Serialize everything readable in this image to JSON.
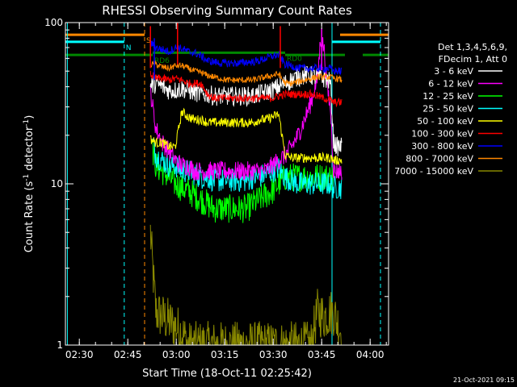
{
  "chart_data": {
    "type": "line",
    "title": "RHESSI Observing Summary Count Rates",
    "xlabel": "Start Time (18-Oct-11 02:25:42)",
    "ylabel_main": "Count Rate (s",
    "ylabel_sup1": "-1",
    "ylabel_mid": " detector",
    "ylabel_sup2": "-1",
    "ylabel_end": ")",
    "timestamp": "21-Oct-2021 09:15",
    "y_scale": "log",
    "ylim": [
      1,
      100
    ],
    "xlim_minutes": [
      0,
      100
    ],
    "x_ticks": [
      {
        "label": "02:30",
        "min": 4.3
      },
      {
        "label": "02:45",
        "min": 19.3
      },
      {
        "label": "03:00",
        "min": 34.3
      },
      {
        "label": "03:15",
        "min": 49.3
      },
      {
        "label": "03:30",
        "min": 64.3
      },
      {
        "label": "03:45",
        "min": 79.3
      },
      {
        "label": "04:00",
        "min": 94.3
      }
    ],
    "y_ticks": [
      {
        "label": "100",
        "value": 100
      },
      {
        "label": "10",
        "value": 10
      },
      {
        "label": "1",
        "value": 1
      }
    ],
    "legend": {
      "header1": "Det 1,3,4,5,6,9,",
      "header2": "FDecim 1, Att 0",
      "entries": [
        {
          "label": "3 - 6 keV",
          "color": "#ffffff"
        },
        {
          "label": "6 - 12 keV",
          "color": "#ff00ff"
        },
        {
          "label": "12 - 25 keV",
          "color": "#00ff00"
        },
        {
          "label": "25 - 50 keV",
          "color": "#00ffff"
        },
        {
          "label": "50 - 100 keV",
          "color": "#ffff00"
        },
        {
          "label": "100 - 300 keV",
          "color": "#ff0000"
        },
        {
          "label": "300 - 800 keV",
          "color": "#0000ff"
        },
        {
          "label": "800 - 7000 keV",
          "color": "#ff8800"
        },
        {
          "label": "7000 - 15000 keV",
          "color": "#888800"
        }
      ]
    },
    "flags": [
      {
        "label": "S",
        "color": "#ff8800",
        "segments": [
          [
            0,
            24.5
          ],
          [
            85,
            100
          ]
        ],
        "level": 84
      },
      {
        "label": "N",
        "color": "#00ffff",
        "segments": [
          [
            0,
            18.2
          ],
          [
            82.5,
            97.5
          ]
        ],
        "level": 76
      },
      {
        "label": "RD6",
        "color": "#008800",
        "segments": [
          [
            0,
            27
          ],
          [
            68,
            86.5
          ],
          [
            92,
            100
          ]
        ],
        "level": 63
      },
      {
        "label": "RD0",
        "color": "#008800",
        "segments": [
          [
            27,
            68
          ]
        ],
        "level": 65
      }
    ],
    "vlines": [
      {
        "min": 18.2,
        "color": "#00ffff",
        "dash": true
      },
      {
        "min": 24.5,
        "color": "#ff8800",
        "dash": true
      },
      {
        "min": 82.5,
        "color": "#00ffff",
        "dash": false
      },
      {
        "min": 97.5,
        "color": "#00ffff",
        "dash": true
      },
      {
        "min": 0.6,
        "color": "#00ffff",
        "dash": false
      }
    ],
    "series": [
      {
        "band": "3 - 6 keV",
        "color": "#ffffff",
        "noise": 0.12,
        "x": [
          26.3,
          28,
          30,
          32,
          34,
          36,
          38,
          40,
          42,
          44,
          46,
          48,
          50,
          52,
          54,
          56,
          58,
          60,
          62,
          64,
          66,
          68,
          70,
          72,
          74,
          76,
          78,
          80,
          82,
          83,
          84,
          85.5
        ],
        "y": [
          40,
          42,
          40,
          38,
          38,
          39,
          38,
          37,
          36,
          36,
          35,
          35,
          35,
          35,
          35,
          35,
          35,
          36,
          37,
          38,
          40,
          42,
          44,
          46,
          47,
          47,
          46,
          45,
          43,
          18,
          17,
          17
        ]
      },
      {
        "band": "6 - 12 keV",
        "color": "#ff00ff",
        "noise": 0.12,
        "x": [
          26.3,
          27,
          28,
          30,
          32,
          34,
          36,
          38,
          40,
          42,
          44,
          46,
          48,
          50,
          52,
          54,
          56,
          58,
          60,
          62,
          64,
          66,
          68,
          70,
          72,
          74,
          76,
          78,
          79,
          80,
          81,
          82,
          83,
          84,
          85.5
        ],
        "y": [
          38,
          30,
          22,
          18,
          16,
          14,
          13,
          13,
          12,
          12,
          12,
          12,
          12,
          12,
          12,
          12,
          12,
          12,
          12,
          12,
          13,
          14,
          15,
          17,
          20,
          25,
          32,
          45,
          80,
          70,
          40,
          30,
          12,
          12,
          12
        ]
      },
      {
        "band": "12 - 25 keV",
        "color": "#00ff00",
        "noise": 0.18,
        "x": [
          27,
          28,
          30,
          32,
          34,
          36,
          38,
          40,
          42,
          44,
          46,
          48,
          50,
          52,
          54,
          56,
          58,
          60,
          62,
          64,
          66,
          68,
          70,
          72,
          74,
          76,
          78,
          80,
          82,
          83
        ],
        "y": [
          16,
          13,
          12,
          11,
          10,
          9.5,
          9,
          8.5,
          8,
          7.5,
          7,
          7,
          7,
          7,
          7,
          7,
          7.5,
          8,
          8.5,
          9,
          10,
          11,
          11,
          11,
          11,
          11,
          11,
          11,
          11,
          11
        ]
      },
      {
        "band": "25 - 50 keV",
        "color": "#00ffff",
        "noise": 0.15,
        "x": [
          27,
          28,
          30,
          32,
          34,
          36,
          38,
          40,
          42,
          44,
          46,
          48,
          50,
          52,
          54,
          56,
          58,
          60,
          62,
          64,
          66,
          68,
          70,
          72,
          74,
          76,
          78,
          80,
          82,
          83,
          84,
          85.5
        ],
        "y": [
          18,
          15,
          14,
          13,
          13,
          12,
          12,
          11.5,
          11,
          11,
          10.5,
          10.5,
          10.5,
          10.5,
          10.5,
          10.5,
          11,
          11,
          11.5,
          12,
          12.5,
          11,
          10.5,
          10,
          10,
          10,
          10,
          10,
          10,
          9.5,
          9.5,
          9.5
        ]
      },
      {
        "band": "50 - 100 keV",
        "color": "#ffff00",
        "noise": 0.06,
        "x": [
          26.3,
          28,
          30,
          32,
          34,
          36,
          38,
          40,
          42,
          44,
          46,
          48,
          50,
          52,
          54,
          56,
          58,
          60,
          62,
          64,
          66,
          68,
          70,
          72,
          74,
          76,
          78,
          80,
          82,
          83,
          84,
          85.5
        ],
        "y": [
          19,
          18,
          18,
          17,
          17,
          28,
          26,
          25,
          25,
          24,
          24,
          24,
          24,
          24,
          24,
          24,
          24,
          25,
          25,
          26,
          27,
          15,
          14.5,
          14.5,
          14.5,
          14.5,
          14.5,
          14.5,
          14.5,
          14,
          14,
          14
        ]
      },
      {
        "band": "100 - 300 keV",
        "color": "#ff0000",
        "noise": 0.05,
        "x": [
          26.3,
          28,
          30,
          32,
          34,
          36,
          38,
          40,
          42,
          44,
          46,
          48,
          50,
          52,
          54,
          56,
          58,
          60,
          62,
          64,
          66,
          68,
          70,
          72,
          74,
          76,
          78,
          80,
          82,
          83,
          84,
          85.5
        ],
        "y": [
          48,
          45,
          45,
          44,
          45,
          44,
          42,
          42,
          42,
          36,
          34,
          34,
          34,
          34,
          34,
          34,
          34,
          34,
          34,
          34,
          35,
          36,
          36,
          36,
          36,
          36,
          35,
          34,
          33,
          32,
          32,
          32
        ]
      },
      {
        "band": "300 - 800 keV",
        "color": "#0000ff",
        "noise": 0.05,
        "x": [
          26.3,
          28,
          30,
          32,
          34,
          36,
          38,
          40,
          42,
          44,
          46,
          48,
          50,
          52,
          54,
          56,
          58,
          60,
          62,
          64,
          66,
          68,
          70,
          72,
          74,
          76,
          78,
          80,
          82,
          83,
          84,
          85.5
        ],
        "y": [
          75,
          70,
          68,
          66,
          70,
          69,
          66,
          65,
          62,
          58,
          57,
          56,
          56,
          56,
          56,
          57,
          57,
          58,
          60,
          62,
          63,
          55,
          54,
          52,
          52,
          52,
          52,
          52,
          52,
          50,
          50,
          50
        ]
      },
      {
        "band": "800 - 7000 keV",
        "color": "#ff8800",
        "noise": 0.04,
        "x": [
          26.3,
          28,
          30,
          32,
          34,
          36,
          38,
          40,
          42,
          44,
          46,
          48,
          50,
          52,
          54,
          56,
          58,
          60,
          62,
          64,
          66,
          68,
          70,
          72,
          74,
          76,
          78,
          80,
          82,
          83,
          84,
          85.5
        ],
        "y": [
          55,
          55,
          53,
          52,
          54,
          54,
          52,
          50,
          49,
          47,
          46,
          45,
          44,
          44,
          44,
          44,
          44,
          45,
          46,
          47,
          48,
          42,
          42,
          43,
          44,
          45,
          46,
          46,
          46,
          45,
          45,
          44
        ]
      },
      {
        "band": "7000 - 15000 keV",
        "color": "#888800",
        "noise": 0.3,
        "x": [
          26.3,
          27,
          28,
          30,
          32,
          34,
          36,
          38,
          40,
          42,
          44,
          46,
          48,
          50,
          52,
          54,
          56,
          58,
          60,
          62,
          64,
          66,
          68,
          70,
          72,
          74,
          76,
          78,
          80,
          82,
          83,
          84,
          85.5
        ],
        "y": [
          5,
          3,
          1.6,
          1.5,
          1.4,
          1.3,
          1.2,
          1,
          1,
          1,
          1,
          1,
          1,
          1,
          1,
          1,
          1,
          1,
          1,
          1,
          1,
          1,
          1,
          1,
          1,
          1,
          1,
          1.6,
          1.5,
          1.6,
          1.6,
          1.4,
          1.2
        ]
      }
    ],
    "spikes": [
      {
        "band": "100 - 300 keV",
        "min": 26.3,
        "value": 95
      },
      {
        "band": "300 - 800 keV",
        "min": 27.5,
        "value": 80
      },
      {
        "band": "100 - 300 keV",
        "min": 34.7,
        "value": 100
      },
      {
        "band": "100 - 300 keV",
        "min": 66.5,
        "value": 95
      },
      {
        "band": "6 - 12 keV",
        "min": 79.3,
        "value": 92
      }
    ]
  }
}
